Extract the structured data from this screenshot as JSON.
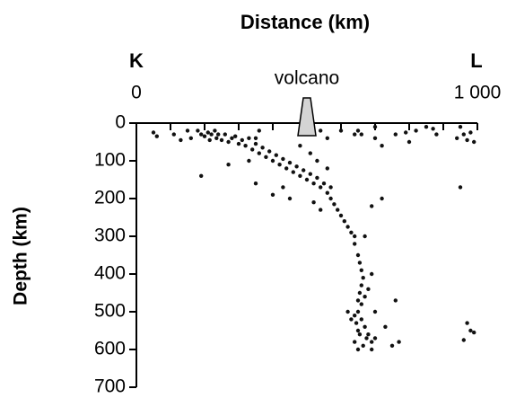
{
  "chart_data": {
    "type": "scatter",
    "title": "Distance (km)",
    "left_label": "K",
    "right_label": "L",
    "y_label": "Depth (km)",
    "annotation": {
      "text": "volcano",
      "x": 500
    },
    "xlim": [
      0,
      1000
    ],
    "xticks": [
      0,
      {
        "value": 1000,
        "label": "1 000"
      }
    ],
    "xminorticks": [
      100,
      200,
      300,
      400,
      500,
      600,
      700,
      800,
      900
    ],
    "ylim": [
      0,
      700
    ],
    "yticks": [
      0,
      100,
      200,
      300,
      400,
      500,
      600,
      700
    ],
    "y_inverted": true,
    "color": "#111111",
    "x": [
      50,
      60,
      110,
      130,
      150,
      160,
      180,
      190,
      200,
      210,
      215,
      220,
      230,
      235,
      240,
      190,
      250,
      260,
      270,
      280,
      290,
      300,
      310,
      320,
      330,
      340,
      350,
      360,
      370,
      380,
      390,
      400,
      410,
      420,
      430,
      440,
      450,
      460,
      470,
      480,
      490,
      500,
      510,
      520,
      530,
      540,
      550,
      560,
      570,
      580,
      590,
      600,
      610,
      620,
      630,
      640,
      270,
      330,
      350,
      400,
      450,
      430,
      520,
      540,
      570,
      690,
      720,
      600,
      640,
      540,
      560,
      700,
      760,
      790,
      800,
      820,
      850,
      870,
      880,
      650,
      640,
      650,
      655,
      660,
      665,
      660,
      655,
      650,
      660,
      670,
      680,
      670,
      650,
      640,
      645,
      650,
      655,
      660,
      670,
      675,
      680,
      690,
      700,
      665,
      640,
      650,
      690,
      620,
      630,
      700,
      730,
      770,
      750,
      760,
      690,
      950,
      960,
      970,
      980,
      990,
      940,
      950,
      970,
      980,
      990,
      960,
      660,
      700,
      720,
      350,
      360,
      480,
      510,
      530,
      560
    ],
    "values": [
      25,
      35,
      30,
      45,
      20,
      40,
      20,
      30,
      35,
      25,
      45,
      30,
      20,
      40,
      30,
      140,
      45,
      30,
      50,
      40,
      35,
      55,
      45,
      60,
      40,
      70,
      55,
      80,
      65,
      90,
      75,
      100,
      85,
      110,
      95,
      120,
      105,
      130,
      115,
      140,
      125,
      150,
      135,
      160,
      145,
      170,
      160,
      185,
      200,
      215,
      230,
      245,
      260,
      275,
      290,
      300,
      110,
      100,
      160,
      190,
      200,
      170,
      210,
      230,
      170,
      220,
      200,
      20,
      30,
      20,
      40,
      40,
      30,
      25,
      50,
      20,
      10,
      15,
      30,
      20,
      320,
      350,
      370,
      390,
      410,
      430,
      450,
      470,
      480,
      460,
      440,
      300,
      500,
      510,
      530,
      550,
      560,
      520,
      540,
      570,
      560,
      580,
      570,
      590,
      580,
      600,
      600,
      500,
      520,
      500,
      540,
      580,
      590,
      470,
      400,
      10,
      30,
      45,
      25,
      50,
      40,
      170,
      530,
      550,
      555,
      575,
      30,
      10,
      60,
      40,
      20,
      60,
      80,
      100,
      120
    ]
  }
}
